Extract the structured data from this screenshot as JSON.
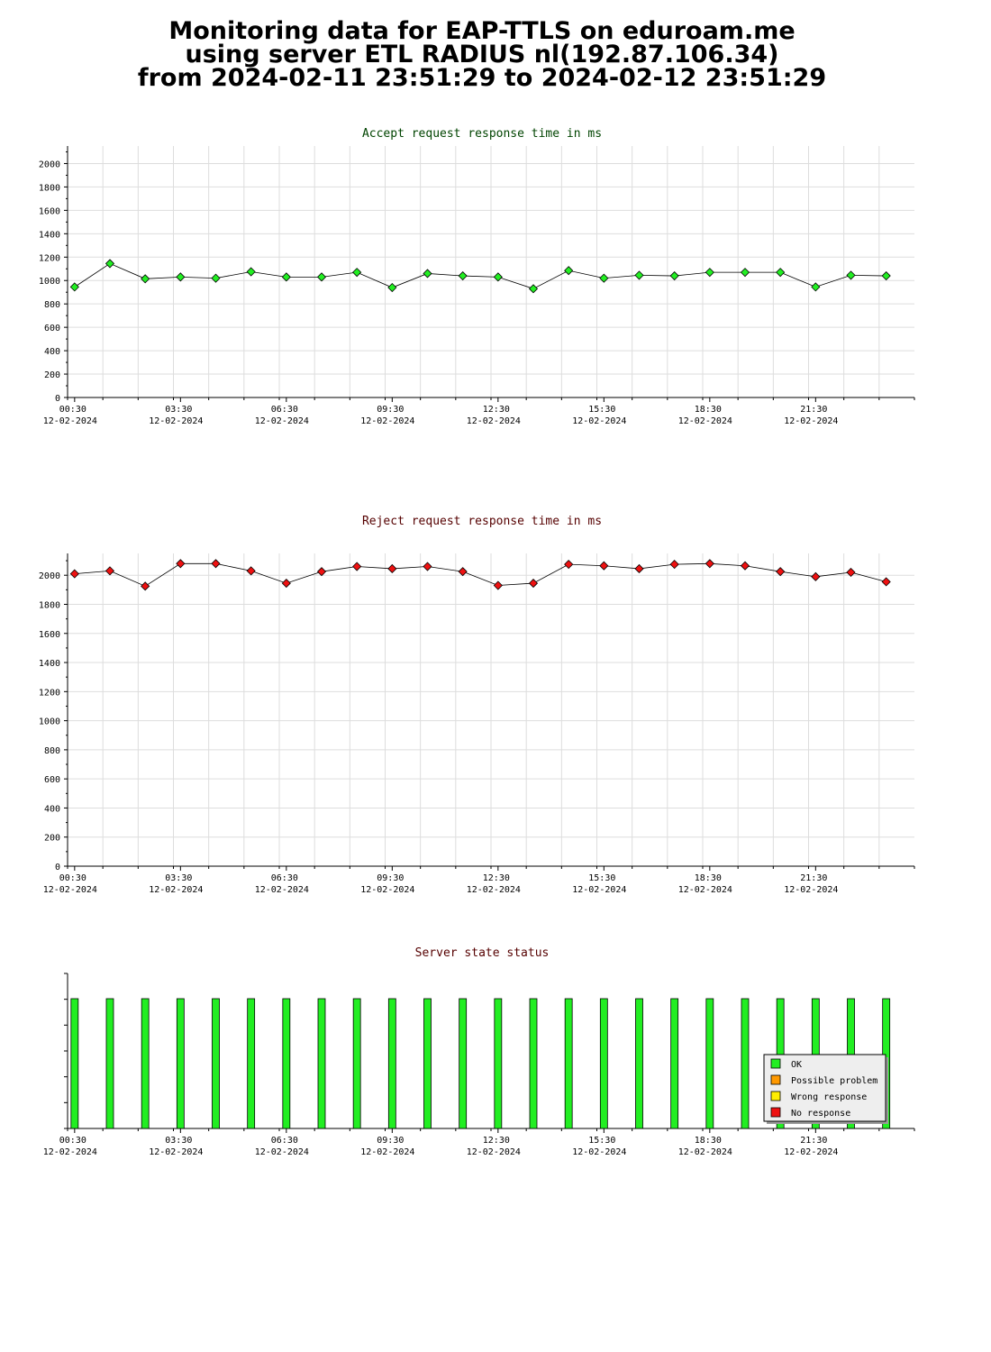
{
  "header": {
    "line1": "Monitoring data for EAP-TTLS on eduroam.me",
    "line2": "using server ETL RADIUS nl(192.87.106.34)",
    "line3": "from 2024-02-11 23:51:29 to 2024-02-12 23:51:29"
  },
  "colors": {
    "accept_marker": "#22ee22",
    "accept_title": "#004400",
    "reject_marker": "#ee1111",
    "reject_title": "#550000",
    "status_title": "#550000",
    "ok": "#22ee22",
    "possible_problem": "#ff9900",
    "wrong_response": "#ffee00",
    "no_response": "#ee1111",
    "grid": "#dddddd"
  },
  "chart_data": [
    {
      "type": "line",
      "title": "Accept request response time in ms",
      "x": [
        "00:30",
        "01:30",
        "02:30",
        "03:30",
        "04:30",
        "05:30",
        "06:30",
        "07:30",
        "08:30",
        "09:30",
        "10:30",
        "11:30",
        "12:30",
        "13:30",
        "14:30",
        "15:30",
        "16:30",
        "17:30",
        "18:30",
        "19:30",
        "20:30",
        "21:30",
        "22:30",
        "23:30"
      ],
      "x_tick_labels": [
        {
          "time": "00:30",
          "date": "12-02-2024"
        },
        {
          "time": "03:30",
          "date": "12-02-2024"
        },
        {
          "time": "06:30",
          "date": "12-02-2024"
        },
        {
          "time": "09:30",
          "date": "12-02-2024"
        },
        {
          "time": "12:30",
          "date": "12-02-2024"
        },
        {
          "time": "15:30",
          "date": "12-02-2024"
        },
        {
          "time": "18:30",
          "date": "12-02-2024"
        },
        {
          "time": "21:30",
          "date": "12-02-2024"
        }
      ],
      "values": [
        945,
        1145,
        1015,
        1030,
        1020,
        1075,
        1030,
        1030,
        1070,
        940,
        1060,
        1040,
        1030,
        930,
        1085,
        1020,
        1045,
        1040,
        1070,
        1070,
        1070,
        945,
        1045,
        1040
      ],
      "ylim": [
        0,
        2150
      ],
      "y_ticks": [
        0,
        200,
        400,
        600,
        800,
        1000,
        1200,
        1400,
        1600,
        1800,
        2000
      ],
      "grid": true
    },
    {
      "type": "line",
      "title": "Reject request response time in ms",
      "x": [
        "00:30",
        "01:30",
        "02:30",
        "03:30",
        "04:30",
        "05:30",
        "06:30",
        "07:30",
        "08:30",
        "09:30",
        "10:30",
        "11:30",
        "12:30",
        "13:30",
        "14:30",
        "15:30",
        "16:30",
        "17:30",
        "18:30",
        "19:30",
        "20:30",
        "21:30",
        "22:30",
        "23:30"
      ],
      "x_tick_labels": [
        {
          "time": "00:30",
          "date": "12-02-2024"
        },
        {
          "time": "03:30",
          "date": "12-02-2024"
        },
        {
          "time": "06:30",
          "date": "12-02-2024"
        },
        {
          "time": "09:30",
          "date": "12-02-2024"
        },
        {
          "time": "12:30",
          "date": "12-02-2024"
        },
        {
          "time": "15:30",
          "date": "12-02-2024"
        },
        {
          "time": "18:30",
          "date": "12-02-2024"
        },
        {
          "time": "21:30",
          "date": "12-02-2024"
        }
      ],
      "values": [
        2010,
        2030,
        1925,
        2080,
        2080,
        2030,
        1945,
        2025,
        2060,
        2045,
        2060,
        2025,
        1930,
        1945,
        2075,
        2065,
        2045,
        2075,
        2080,
        2065,
        2025,
        1990,
        2020,
        1955
      ],
      "ylim": [
        0,
        2150
      ],
      "y_ticks": [
        0,
        200,
        400,
        600,
        800,
        1000,
        1200,
        1400,
        1600,
        1800,
        2000
      ],
      "grid": true
    },
    {
      "type": "bar",
      "title": "Server state status",
      "x": [
        "00:30",
        "01:30",
        "02:30",
        "03:30",
        "04:30",
        "05:30",
        "06:30",
        "07:30",
        "08:30",
        "09:30",
        "10:30",
        "11:30",
        "12:30",
        "13:30",
        "14:30",
        "15:30",
        "16:30",
        "17:30",
        "18:30",
        "19:30",
        "20:30",
        "21:30",
        "22:30",
        "23:30"
      ],
      "x_tick_labels": [
        {
          "time": "00:30",
          "date": "12-02-2024"
        },
        {
          "time": "03:30",
          "date": "12-02-2024"
        },
        {
          "time": "06:30",
          "date": "12-02-2024"
        },
        {
          "time": "09:30",
          "date": "12-02-2024"
        },
        {
          "time": "12:30",
          "date": "12-02-2024"
        },
        {
          "time": "15:30",
          "date": "12-02-2024"
        },
        {
          "time": "18:30",
          "date": "12-02-2024"
        },
        {
          "time": "21:30",
          "date": "12-02-2024"
        }
      ],
      "states": [
        "OK",
        "OK",
        "OK",
        "OK",
        "OK",
        "OK",
        "OK",
        "OK",
        "OK",
        "OK",
        "OK",
        "OK",
        "OK",
        "OK",
        "OK",
        "OK",
        "OK",
        "OK",
        "OK",
        "OK",
        "OK",
        "OK",
        "OK",
        "OK"
      ],
      "legend": {
        "placement": "bottom-right",
        "entries": [
          {
            "label": "OK",
            "color": "#22ee22"
          },
          {
            "label": "Possible problem",
            "color": "#ff9900"
          },
          {
            "label": "Wrong response",
            "color": "#ffee00"
          },
          {
            "label": "No response",
            "color": "#ee1111"
          }
        ]
      }
    }
  ]
}
